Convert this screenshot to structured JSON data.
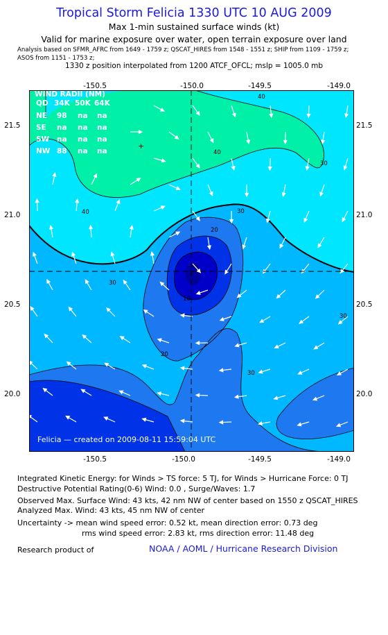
{
  "header": {
    "title": "Tropical Storm Felicia 1330 UTC 10 AUG 2009",
    "subtitle1": "Max 1-min sustained surface winds (kt)",
    "subtitle2": "Valid for marine exposure over water, open terrain exposure over land",
    "analysis_line1": "Analysis based on   SFMR_AFRC from 1649 - 1759 z;  QSCAT_HIRES from 1548 - 1551 z;  SHIP from 1109 - 1759 z;",
    "analysis_line2": "ASOS from 1151 - 1753 z;",
    "interp_line": "1330 z position interpolated from 1200 ATCF_OFCL; mslp = 1005.0 mb"
  },
  "map": {
    "lon_ticks": [
      "-150.5",
      "-150.0",
      "-149.5",
      "-149.0"
    ],
    "lat_ticks": [
      "21.5",
      "21.0",
      "20.5",
      "20.0"
    ],
    "lon_range": [
      -150.92,
      -149.05
    ],
    "lat_range": [
      19.7,
      21.72
    ],
    "center": {
      "lon": -149.99,
      "lat": 20.69
    },
    "contour_labels": [
      "40",
      "40",
      "40",
      "30",
      "30",
      "30",
      "30",
      "30",
      "20",
      "20",
      "10"
    ],
    "credit": "Felicia — created on 2009-08-11 15:59:04 UTC",
    "wind_radii": {
      "title": "WIND RADII (NM)",
      "header": [
        "QD",
        "34K",
        "50K",
        "64K"
      ],
      "rows": [
        [
          "NE",
          "98",
          "na",
          "na"
        ],
        [
          "SE",
          "na",
          "na",
          "na"
        ],
        [
          "SW",
          "na",
          "na",
          "na"
        ],
        [
          "NW",
          "88",
          "na",
          "na"
        ]
      ]
    },
    "colors": {
      "frame": "#000000",
      "band_lt10": "#0000c8",
      "band_10_20": "#0033e8",
      "band_20_30": "#1e78f0",
      "band_30_40": "#00b8ff",
      "band_40_50": "#00e6ff",
      "band_gt50": "#00f0a8",
      "arrows": "#ffffff",
      "title_blue": "#1a1ad8"
    }
  },
  "footer": {
    "ike": "Integrated Kinetic Energy:  for Winds > TS force: 5 TJ,  for Winds > Hurricane Force: 0 TJ",
    "dpr": "Destructive Potential Rating(0-6)   Wind: 0.0 , Surge/Waves: 1.7",
    "obs_max": "Observed Max. Surface Wind: 43 kts, 42 nm NW of center based on 1550 z QSCAT_HIRES",
    "ana_max": "Analyzed Max. Wind: 43 kts, 45 nm NW of center",
    "unc1": "Uncertainty -> mean wind speed error: 0.52 kt,   mean direction error: 0.73 deg",
    "unc2": "rms wind speed error: 2.83 kt,   rms direction error: 11.48 deg",
    "research_label": "Research product of",
    "research_link": "NOAA / AOML / Hurricane Research Division"
  }
}
